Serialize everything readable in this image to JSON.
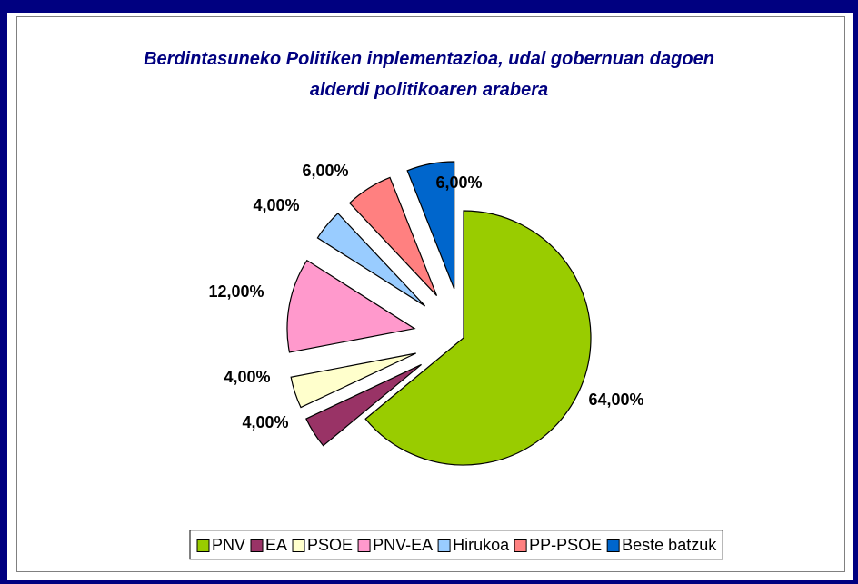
{
  "chart_data": {
    "type": "pie",
    "title": "Berdintasuneko Politiken inplementazioa, udal gobernuan dagoen alderdi politikoaren arabera",
    "categories": [
      "PNV",
      "EA",
      "PSOE",
      "PNV-EA",
      "Hirukoa",
      "PP-PSOE",
      "Beste batzuk"
    ],
    "values": [
      64,
      4,
      4,
      12,
      4,
      6,
      6
    ],
    "value_labels": [
      "64,00%",
      "4,00%",
      "4,00%",
      "12,00%",
      "4,00%",
      "6,00%",
      "6,00%"
    ],
    "colors": [
      "#99cc00",
      "#993366",
      "#ffffcc",
      "#ff99cc",
      "#99ccff",
      "#ff8080",
      "#0066cc"
    ],
    "legend": "bottom"
  }
}
